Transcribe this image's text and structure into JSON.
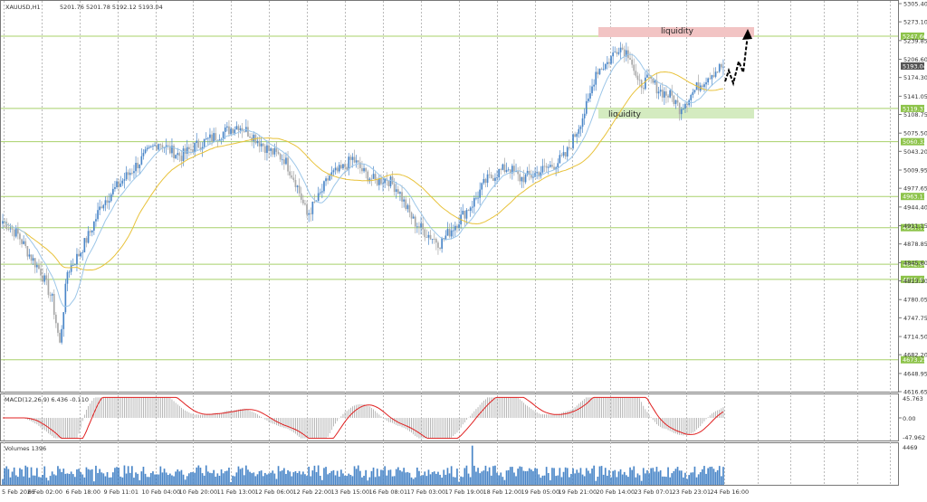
{
  "header": {
    "symbol_label": "XAUUSD,H1",
    "ohlc_label": "5201.76 5201.78 5192.12 5193.04",
    "current_price_label": "5193.04"
  },
  "macd": {
    "title": "MACD(12,26,9) 6.436 -0.110",
    "scale": [
      "45.763",
      "0.00",
      "-47.962"
    ]
  },
  "volumes": {
    "title": "Volumes 1396",
    "scale_top": "4469"
  },
  "annotations": {
    "liquidity_top": "liquidity",
    "liquidity_bottom": "liquidity"
  },
  "colors": {
    "bull_candle": "#4a86c8",
    "bear_candle": "#a8a8a8",
    "ma_fast": "#9cc6e8",
    "ma_slow": "#e8c23a",
    "level_line": "#a8d16a",
    "level_tag": "#8dc34a",
    "liquidity_red": "#f2c4c4",
    "liquidity_green": "#d4ebc0",
    "macd_signal": "#e02020",
    "volume_bar": "#4a86c8"
  },
  "chart_data": [
    {
      "type": "candlestick",
      "title": "XAUUSD,H1",
      "timeframe": "H1",
      "price_axis_ticks": [
        "5305.40",
        "5273.10",
        "5239.85",
        "5206.60",
        "5174.30",
        "5141.05",
        "5108.75",
        "5075.50",
        "5043.20",
        "5009.95",
        "4977.65",
        "4944.40",
        "4911.15",
        "4878.85",
        "4845.60",
        "4813.30",
        "4780.05",
        "4747.75",
        "4714.50",
        "4682.20",
        "4648.95",
        "4616.65"
      ],
      "ylim": [
        4616.65,
        5305.4
      ],
      "horizontal_levels": [
        "5247.66",
        "5119.31",
        "5060.32",
        "4963.11",
        "4907.72",
        "4842.90",
        "4815.97",
        "4673.25"
      ],
      "current_price": "5193.04",
      "time_axis_labels": [
        "5 Feb 2026",
        "6 Feb 02:00",
        "6 Feb 18:00",
        "9 Feb 11:01",
        "10 Feb 04:00",
        "10 Feb 20:00",
        "11 Feb 13:00",
        "12 Feb 06:00",
        "12 Feb 22:00",
        "13 Feb 15:00",
        "16 Feb 08:01",
        "17 Feb 03:00",
        "17 Feb 19:00",
        "18 Feb 12:00",
        "19 Feb 05:00",
        "19 Feb 21:00",
        "20 Feb 14:00",
        "23 Feb 07:01",
        "23 Feb 23:01",
        "24 Feb 16:00"
      ],
      "approx_close_path": [
        [
          0,
          4920
        ],
        [
          8,
          4895
        ],
        [
          14,
          4860
        ],
        [
          20,
          4830
        ],
        [
          26,
          4780
        ],
        [
          30,
          4700
        ],
        [
          34,
          4830
        ],
        [
          40,
          4860
        ],
        [
          46,
          4900
        ],
        [
          52,
          4950
        ],
        [
          60,
          4980
        ],
        [
          68,
          5010
        ],
        [
          76,
          5040
        ],
        [
          82,
          5060
        ],
        [
          88,
          5045
        ],
        [
          94,
          5035
        ],
        [
          100,
          5050
        ],
        [
          106,
          5060
        ],
        [
          112,
          5070
        ],
        [
          118,
          5080
        ],
        [
          124,
          5090
        ],
        [
          132,
          5070
        ],
        [
          140,
          5045
        ],
        [
          148,
          5030
        ],
        [
          154,
          4990
        ],
        [
          160,
          4930
        ],
        [
          166,
          4960
        ],
        [
          172,
          5000
        ],
        [
          178,
          5010
        ],
        [
          184,
          5030
        ],
        [
          190,
          5005
        ],
        [
          196,
          4990
        ],
        [
          202,
          4995
        ],
        [
          208,
          4975
        ],
        [
          212,
          4945
        ],
        [
          216,
          4920
        ],
        [
          222,
          4900
        ],
        [
          230,
          4880
        ],
        [
          236,
          4905
        ],
        [
          242,
          4930
        ],
        [
          248,
          4955
        ],
        [
          254,
          4990
        ],
        [
          260,
          5005
        ],
        [
          266,
          5015
        ],
        [
          272,
          4995
        ],
        [
          278,
          5000
        ],
        [
          284,
          5010
        ],
        [
          290,
          5020
        ],
        [
          296,
          5035
        ],
        [
          302,
          5080
        ],
        [
          308,
          5130
        ],
        [
          312,
          5185
        ],
        [
          318,
          5200
        ],
        [
          324,
          5230
        ],
        [
          330,
          5215
        ],
        [
          334,
          5160
        ],
        [
          340,
          5170
        ],
        [
          346,
          5150
        ],
        [
          352,
          5140
        ],
        [
          356,
          5120
        ],
        [
          360,
          5135
        ],
        [
          366,
          5160
        ],
        [
          372,
          5180
        ],
        [
          378,
          5193
        ]
      ],
      "projection": "dashed bullish arrow toward ~5255 after current price"
    },
    {
      "type": "histogram",
      "title": "MACD(12,26,9) 6.436 -0.110",
      "ylim": [
        -47.962,
        45.763
      ],
      "series": [
        {
          "name": "MACD",
          "values": []
        },
        {
          "name": "Signal",
          "values": []
        }
      ]
    },
    {
      "type": "bar",
      "title": "Volumes 1396",
      "ylim": [
        0,
        4469
      ]
    }
  ]
}
